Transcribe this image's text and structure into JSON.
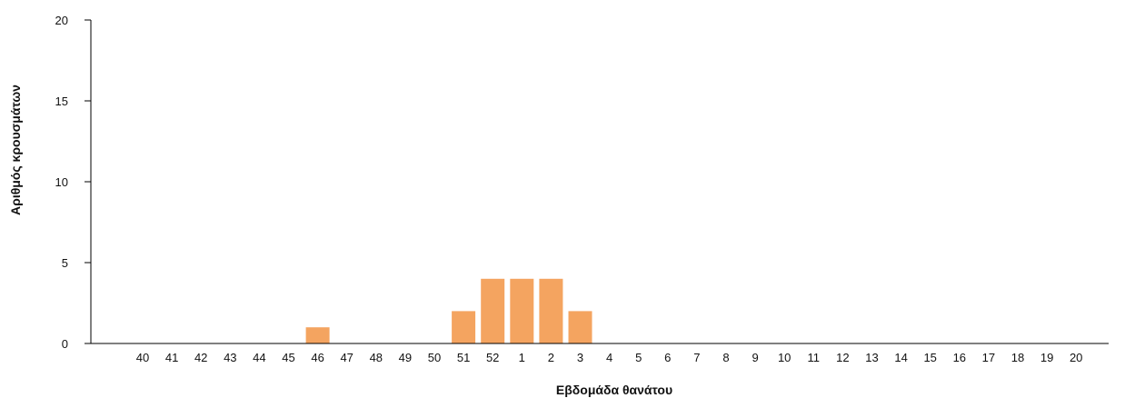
{
  "chart_data": {
    "type": "bar",
    "title": "",
    "xlabel": "Εβδομάδα θανάτου",
    "ylabel": "Αριθμός κρουσμάτων",
    "ylim": [
      0,
      20
    ],
    "yticks": [
      0,
      5,
      10,
      15,
      20
    ],
    "grid": false,
    "legend": "none",
    "categories": [
      "40",
      "41",
      "42",
      "43",
      "44",
      "45",
      "46",
      "47",
      "48",
      "49",
      "50",
      "51",
      "52",
      "1",
      "2",
      "3",
      "4",
      "5",
      "6",
      "7",
      "8",
      "9",
      "10",
      "11",
      "12",
      "13",
      "14",
      "15",
      "16",
      "17",
      "18",
      "19",
      "20"
    ],
    "values": [
      0,
      0,
      0,
      0,
      0,
      0,
      1,
      0,
      0,
      0,
      0,
      2,
      4,
      4,
      4,
      2,
      0,
      0,
      0,
      0,
      0,
      0,
      0,
      0,
      0,
      0,
      0,
      0,
      0,
      0,
      0,
      0,
      0
    ],
    "bar_color": "#F4A460"
  }
}
